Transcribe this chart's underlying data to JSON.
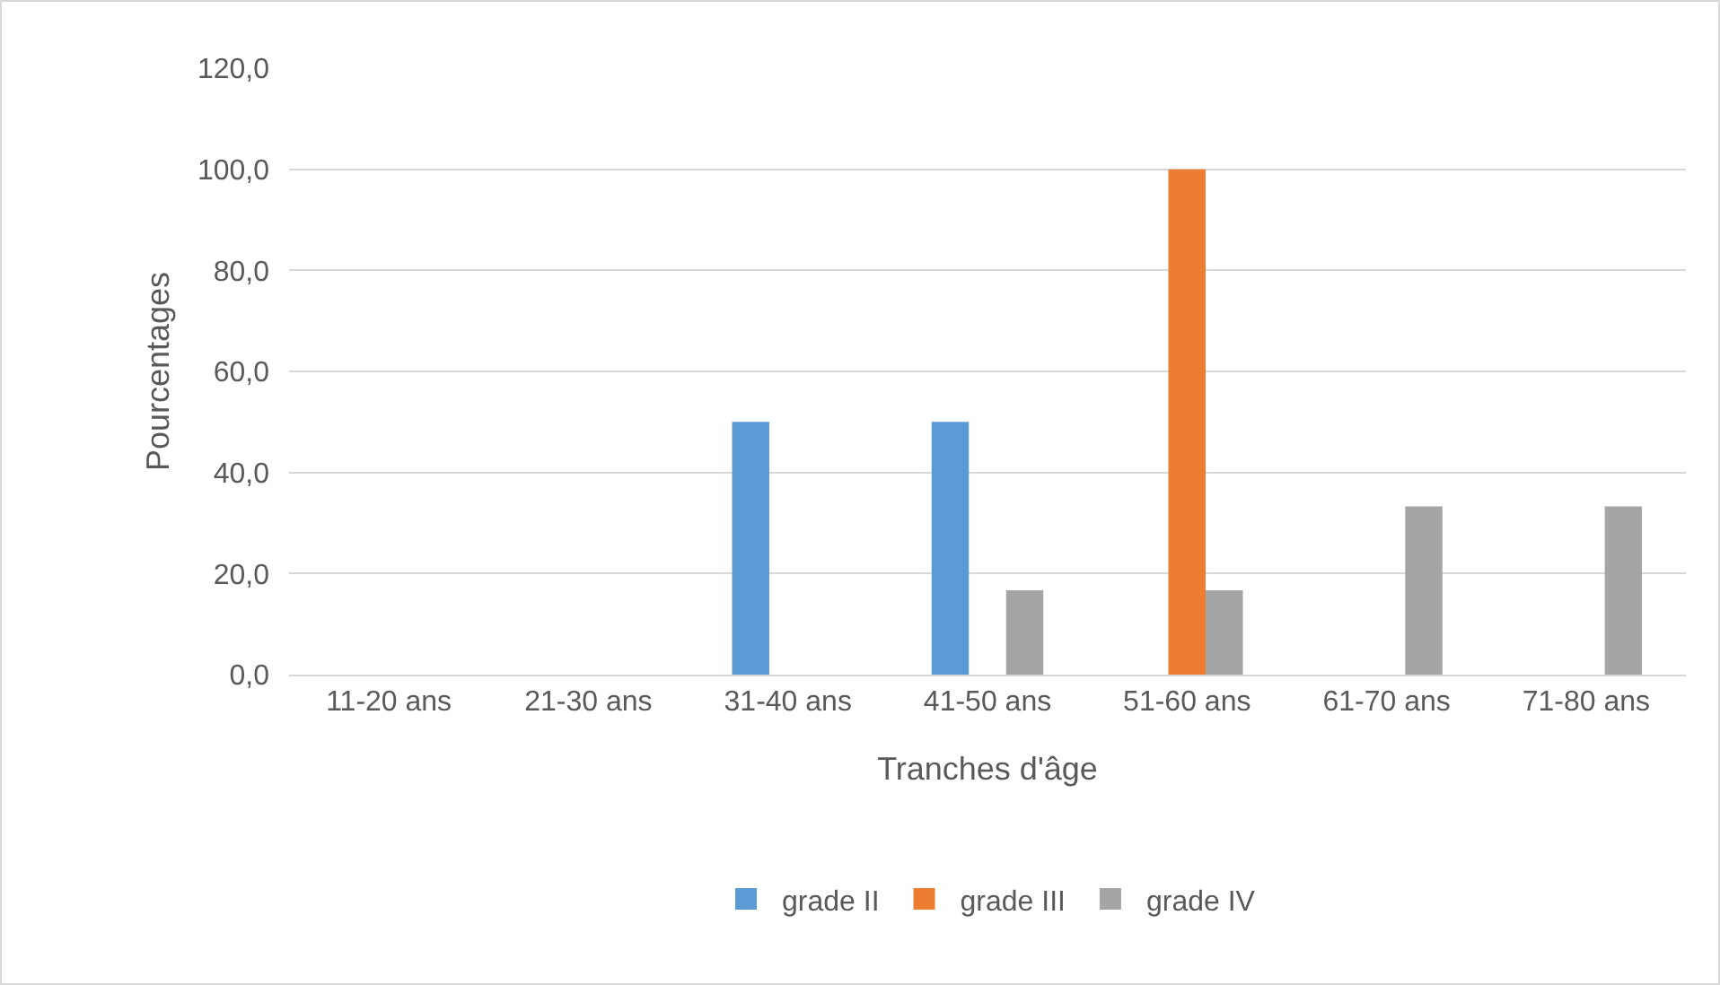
{
  "chart_data": {
    "type": "bar",
    "xlabel": "Tranches d'âge",
    "ylabel": "Pourcentages",
    "categories": [
      "11-20 ans",
      "21-30 ans",
      "31-40 ans",
      "41-50 ans",
      "51-60 ans",
      "61-70 ans",
      "71-80 ans"
    ],
    "series": [
      {
        "name": "grade II",
        "color": "#5b9bd5",
        "values": [
          0,
          0,
          50,
          50,
          0,
          0,
          0
        ]
      },
      {
        "name": "grade III",
        "color": "#ed7d31",
        "values": [
          0,
          0,
          0,
          0,
          100,
          0,
          0
        ]
      },
      {
        "name": "grade IV",
        "color": "#a5a5a5",
        "values": [
          0,
          0,
          0,
          16.7,
          16.7,
          33.3,
          33.3
        ]
      }
    ],
    "ylim": [
      0,
      120
    ],
    "yticks": [
      {
        "value": 0,
        "label": "0,0"
      },
      {
        "value": 20,
        "label": "20,0"
      },
      {
        "value": 40,
        "label": "40,0"
      },
      {
        "value": 60,
        "label": "60,0"
      },
      {
        "value": 80,
        "label": "80,0"
      },
      {
        "value": 100,
        "label": "100,0"
      },
      {
        "value": 120,
        "label": "120,0"
      }
    ],
    "grid": "y",
    "legend": "bottom"
  }
}
